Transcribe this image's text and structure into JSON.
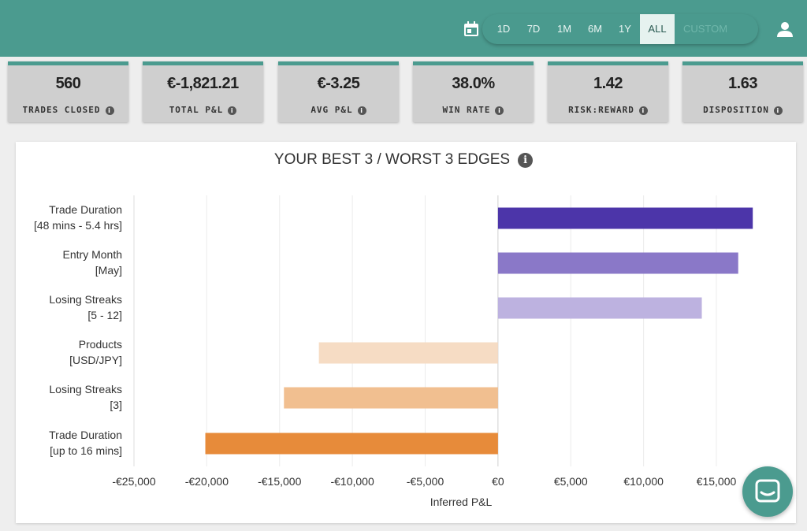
{
  "toolbar": {
    "ranges": [
      "1D",
      "7D",
      "1M",
      "6M",
      "1Y",
      "ALL",
      "CUSTOM"
    ],
    "active_range": "ALL",
    "calendar_icon": "calendar-icon",
    "user_icon": "user-icon"
  },
  "kpis": [
    {
      "value": "560",
      "label": "TRADES CLOSED"
    },
    {
      "value": "€-1,821.21",
      "label": "TOTAL P&L"
    },
    {
      "value": "€-3.25",
      "label": "AVG P&L"
    },
    {
      "value": "38.0%",
      "label": "WIN RATE"
    },
    {
      "value": "1.42",
      "label": "RISK:REWARD"
    },
    {
      "value": "1.63",
      "label": "DISPOSITION"
    }
  ],
  "chart_data": {
    "type": "bar",
    "orientation": "horizontal",
    "title": "YOUR BEST 3 / WORST 3 EDGES",
    "xlabel": "Inferred P&L",
    "ylabel": "",
    "xlim": [
      -25000,
      17500
    ],
    "xticks": [
      -25000,
      -20000,
      -15000,
      -10000,
      -5000,
      0,
      5000,
      10000,
      15000
    ],
    "xtick_labels": [
      "-€25,000",
      "-€20,000",
      "-€15,000",
      "-€10,000",
      "-€5,000",
      "€0",
      "€5,000",
      "€10,000",
      "€15,000"
    ],
    "grid": "vertical",
    "categories": [
      [
        "Trade Duration",
        "[48 mins - 5.4 hrs]"
      ],
      [
        "Entry Month",
        "[May]"
      ],
      [
        "Losing Streaks",
        "[5 - 12]"
      ],
      [
        "Products",
        "[USD/JPY]"
      ],
      [
        "Losing Streaks",
        "[3]"
      ],
      [
        "Trade Duration",
        "[up to 16 mins]"
      ]
    ],
    "values": [
      17500,
      16500,
      14000,
      -12300,
      -14700,
      -20100
    ],
    "colors": [
      "#4c35a9",
      "#8a78c8",
      "#bdb2e0",
      "#f6dcc4",
      "#f1bf90",
      "#e78b3a"
    ]
  },
  "chat_icon": "chat-icon"
}
